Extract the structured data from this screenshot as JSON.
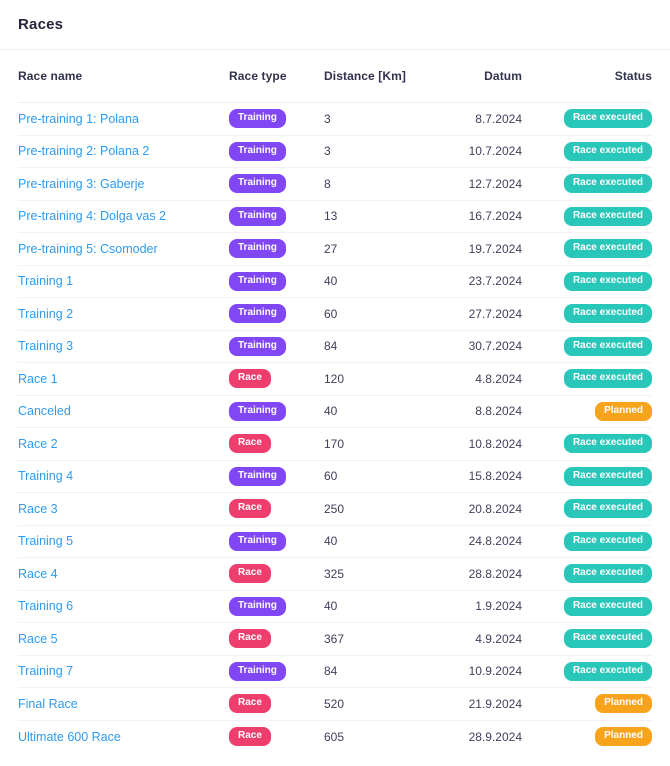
{
  "page": {
    "title": "Races"
  },
  "colors": {
    "type_training": "#8247f5",
    "type_race": "#ed3e6e",
    "status_race_executed": "#29c7b9",
    "status_planned": "#f8a31c",
    "link_blue": "#2d9cf0",
    "heading_text": "#32324d",
    "body_text": "#40405c",
    "divider": "#f1f1f6"
  },
  "table": {
    "columns": [
      {
        "key": "name",
        "label": "Race name"
      },
      {
        "key": "type",
        "label": "Race type"
      },
      {
        "key": "distance",
        "label": "Distance [Km]"
      },
      {
        "key": "date",
        "label": "Datum"
      },
      {
        "key": "status",
        "label": "Status"
      }
    ],
    "badge_colors": {
      "Training": "#8247f5",
      "Race": "#ed3e6e"
    },
    "status_colors": {
      "Race executed": "#29c7b9",
      "Planned": "#f8a31c"
    },
    "rows": [
      {
        "name": "Pre-training 1: Polana",
        "type": "Training",
        "distance": "3",
        "date": "8.7.2024",
        "status": "Race executed"
      },
      {
        "name": "Pre-training 2: Polana 2",
        "type": "Training",
        "distance": "3",
        "date": "10.7.2024",
        "status": "Race executed"
      },
      {
        "name": "Pre-training 3: Gaberje",
        "type": "Training",
        "distance": "8",
        "date": "12.7.2024",
        "status": "Race executed"
      },
      {
        "name": "Pre-training 4: Dolga vas 2",
        "type": "Training",
        "distance": "13",
        "date": "16.7.2024",
        "status": "Race executed"
      },
      {
        "name": "Pre-training 5: Csomoder",
        "type": "Training",
        "distance": "27",
        "date": "19.7.2024",
        "status": "Race executed"
      },
      {
        "name": "Training 1",
        "type": "Training",
        "distance": "40",
        "date": "23.7.2024",
        "status": "Race executed"
      },
      {
        "name": "Training 2",
        "type": "Training",
        "distance": "60",
        "date": "27.7.2024",
        "status": "Race executed"
      },
      {
        "name": "Training 3",
        "type": "Training",
        "distance": "84",
        "date": "30.7.2024",
        "status": "Race executed"
      },
      {
        "name": "Race 1",
        "type": "Race",
        "distance": "120",
        "date": "4.8.2024",
        "status": "Race executed"
      },
      {
        "name": "Canceled",
        "type": "Training",
        "distance": "40",
        "date": "8.8.2024",
        "status": "Planned"
      },
      {
        "name": "Race 2",
        "type": "Race",
        "distance": "170",
        "date": "10.8.2024",
        "status": "Race executed"
      },
      {
        "name": "Training 4",
        "type": "Training",
        "distance": "60",
        "date": "15.8.2024",
        "status": "Race executed"
      },
      {
        "name": "Race 3",
        "type": "Race",
        "distance": "250",
        "date": "20.8.2024",
        "status": "Race executed"
      },
      {
        "name": "Training 5",
        "type": "Training",
        "distance": "40",
        "date": "24.8.2024",
        "status": "Race executed"
      },
      {
        "name": "Race 4",
        "type": "Race",
        "distance": "325",
        "date": "28.8.2024",
        "status": "Race executed"
      },
      {
        "name": "Training 6",
        "type": "Training",
        "distance": "40",
        "date": "1.9.2024",
        "status": "Race executed"
      },
      {
        "name": "Race 5",
        "type": "Race",
        "distance": "367",
        "date": "4.9.2024",
        "status": "Race executed"
      },
      {
        "name": "Training 7",
        "type": "Training",
        "distance": "84",
        "date": "10.9.2024",
        "status": "Race executed"
      },
      {
        "name": "Final Race",
        "type": "Race",
        "distance": "520",
        "date": "21.9.2024",
        "status": "Planned"
      },
      {
        "name": "Ultimate 600 Race",
        "type": "Race",
        "distance": "605",
        "date": "28.9.2024",
        "status": "Planned"
      }
    ]
  }
}
